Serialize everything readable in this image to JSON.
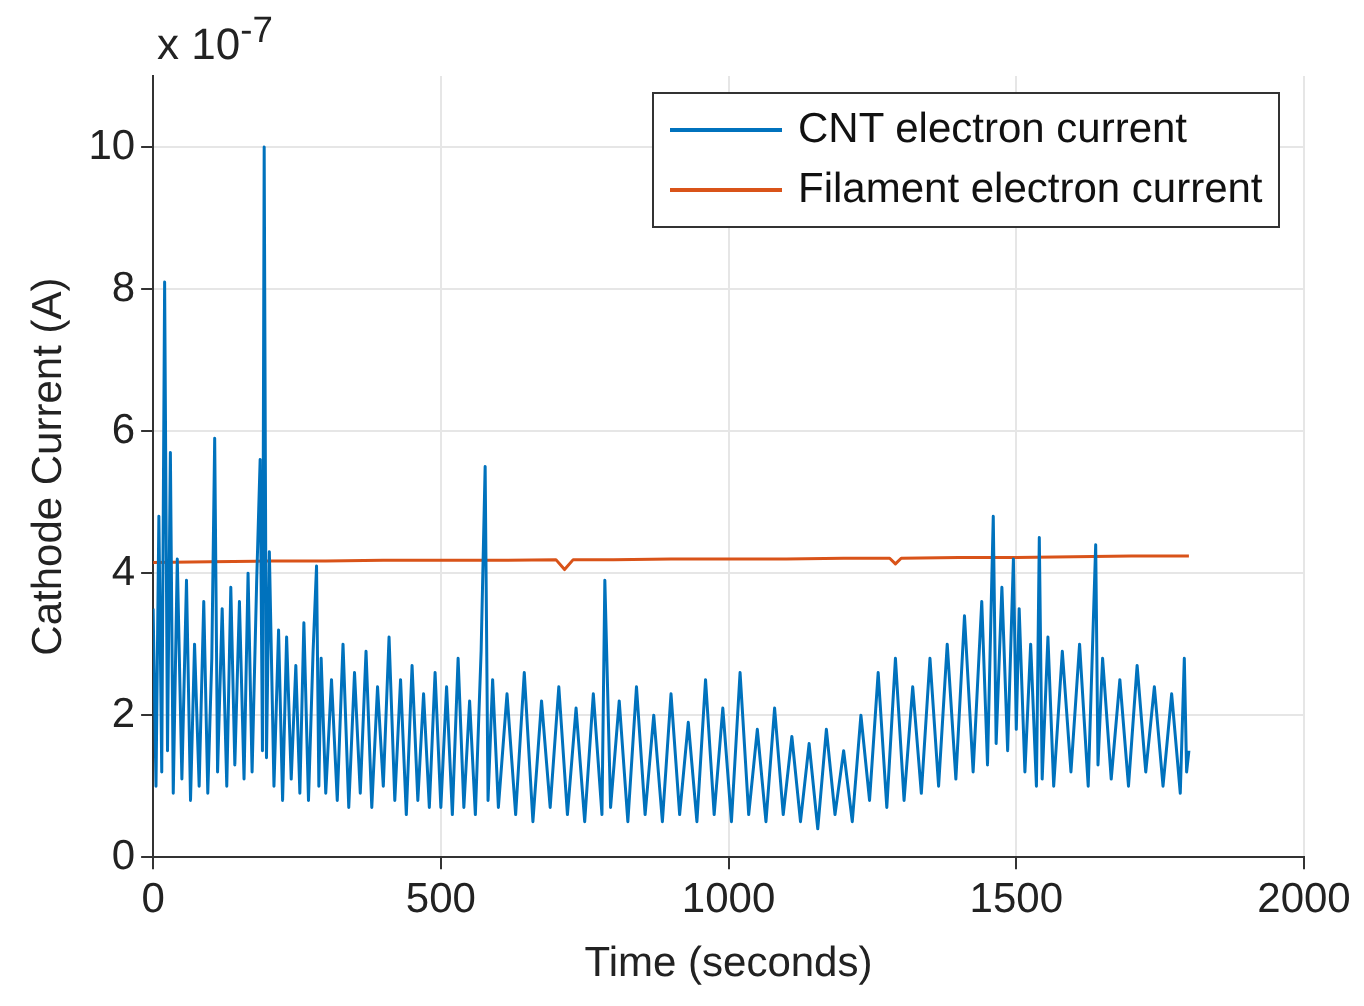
{
  "chart_data": {
    "type": "line",
    "xlabel": "Time (seconds)",
    "ylabel": "Cathode Current (A)",
    "annotations": [
      "x 10$^{-7}$"
    ],
    "xlim": [
      0,
      2000
    ],
    "xticks": [
      0,
      500,
      1000,
      1500,
      2000
    ],
    "ylim": [
      0,
      11
    ],
    "yticks": [
      0,
      2,
      4,
      6,
      8,
      10
    ],
    "grid": true,
    "legend": "top right",
    "marker": "none",
    "line_style": "solid",
    "series": [
      {
        "name": "CNT electron current",
        "color": "#0072bd",
        "x": [
          0,
          5,
          10,
          15,
          20,
          25,
          30,
          35,
          42,
          50,
          58,
          65,
          72,
          80,
          88,
          95,
          102,
          107,
          112,
          120,
          128,
          135,
          142,
          150,
          158,
          165,
          172,
          180,
          186,
          190,
          193,
          197,
          202,
          210,
          218,
          225,
          232,
          240,
          248,
          255,
          262,
          270,
          278,
          284,
          288,
          292,
          300,
          310,
          320,
          330,
          340,
          350,
          360,
          370,
          380,
          390,
          400,
          410,
          420,
          430,
          440,
          450,
          460,
          470,
          480,
          490,
          500,
          510,
          520,
          530,
          540,
          550,
          560,
          570,
          577,
          582,
          590,
          600,
          615,
          630,
          645,
          660,
          675,
          690,
          705,
          720,
          735,
          750,
          765,
          780,
          785,
          795,
          810,
          825,
          840,
          855,
          870,
          885,
          900,
          915,
          930,
          945,
          960,
          975,
          990,
          1005,
          1020,
          1035,
          1050,
          1065,
          1080,
          1095,
          1110,
          1125,
          1140,
          1155,
          1170,
          1185,
          1200,
          1215,
          1230,
          1245,
          1260,
          1275,
          1290,
          1305,
          1320,
          1335,
          1350,
          1365,
          1380,
          1395,
          1410,
          1425,
          1440,
          1450,
          1460,
          1465,
          1475,
          1485,
          1495,
          1500,
          1505,
          1515,
          1525,
          1535,
          1540,
          1545,
          1555,
          1565,
          1580,
          1595,
          1610,
          1625,
          1638,
          1642,
          1650,
          1665,
          1680,
          1695,
          1710,
          1725,
          1740,
          1755,
          1770,
          1785,
          1792,
          1796,
          1800
        ],
        "values": [
          3.5,
          1.0,
          4.8,
          1.2,
          8.1,
          1.5,
          5.7,
          0.9,
          4.2,
          1.1,
          3.9,
          0.8,
          3.0,
          1.0,
          3.6,
          0.9,
          2.8,
          5.9,
          1.2,
          3.5,
          1.0,
          3.8,
          1.3,
          3.6,
          1.1,
          4.0,
          1.2,
          3.9,
          5.6,
          1.5,
          10.0,
          1.4,
          4.3,
          1.0,
          3.2,
          0.8,
          3.1,
          1.1,
          2.7,
          0.9,
          3.3,
          0.8,
          2.9,
          4.1,
          1.0,
          2.8,
          0.9,
          2.5,
          0.8,
          3.0,
          0.7,
          2.6,
          0.9,
          2.9,
          0.7,
          2.4,
          1.0,
          3.1,
          0.8,
          2.5,
          0.6,
          2.7,
          0.8,
          2.3,
          0.7,
          2.6,
          0.7,
          2.4,
          0.6,
          2.8,
          0.7,
          2.2,
          0.6,
          2.9,
          5.5,
          0.8,
          2.5,
          0.7,
          2.3,
          0.6,
          2.6,
          0.5,
          2.2,
          0.7,
          2.4,
          0.6,
          2.1,
          0.5,
          2.3,
          0.6,
          3.9,
          0.7,
          2.2,
          0.5,
          2.4,
          0.6,
          2.0,
          0.5,
          2.3,
          0.6,
          1.9,
          0.5,
          2.5,
          0.6,
          2.1,
          0.5,
          2.6,
          0.6,
          1.8,
          0.5,
          2.1,
          0.6,
          1.7,
          0.5,
          1.6,
          0.4,
          1.8,
          0.6,
          1.5,
          0.5,
          2.0,
          0.8,
          2.6,
          0.7,
          2.8,
          0.8,
          2.4,
          0.9,
          2.8,
          1.0,
          3.0,
          1.1,
          3.4,
          1.2,
          3.6,
          1.3,
          4.8,
          1.6,
          3.8,
          1.5,
          4.2,
          1.8,
          3.5,
          1.2,
          3.0,
          1.0,
          4.5,
          1.1,
          3.1,
          1.0,
          2.9,
          1.2,
          3.0,
          1.0,
          4.4,
          1.3,
          2.8,
          1.1,
          2.5,
          1.0,
          2.7,
          1.2,
          2.4,
          1.0,
          2.3,
          0.9,
          2.8,
          1.2,
          1.5
        ]
      },
      {
        "name": "Filament electron current",
        "color": "#d95319",
        "x": [
          0,
          100,
          200,
          300,
          400,
          500,
          600,
          700,
          715,
          730,
          800,
          900,
          1000,
          1100,
          1200,
          1280,
          1290,
          1300,
          1400,
          1500,
          1600,
          1700,
          1800
        ],
        "values": [
          4.15,
          4.16,
          4.17,
          4.17,
          4.18,
          4.18,
          4.18,
          4.19,
          4.05,
          4.19,
          4.19,
          4.2,
          4.2,
          4.2,
          4.21,
          4.21,
          4.13,
          4.21,
          4.22,
          4.22,
          4.23,
          4.24,
          4.24
        ]
      }
    ]
  }
}
